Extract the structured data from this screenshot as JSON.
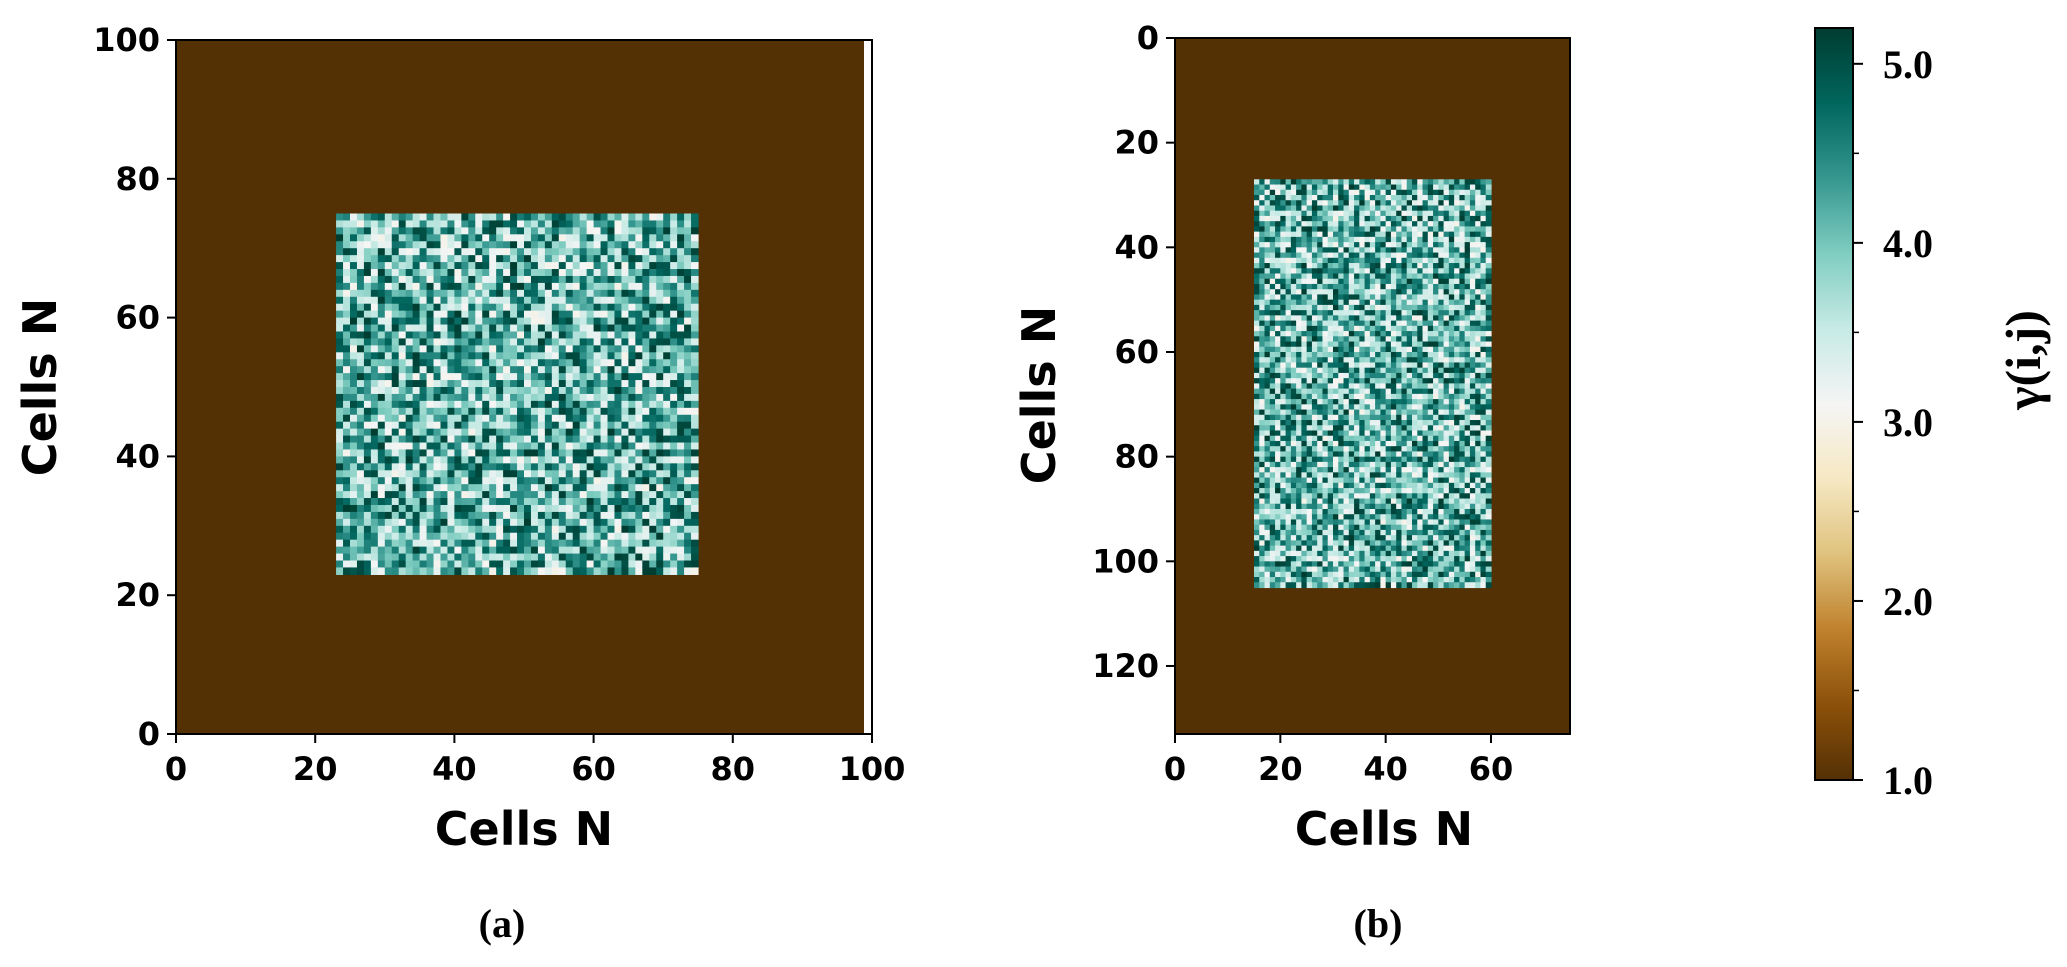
{
  "colors": {
    "background": "#523006",
    "colormap": [
      "#543005",
      "#8c510a",
      "#bf812d",
      "#dfc27d",
      "#f6e8c3",
      "#f5f5f5",
      "#c7eae5",
      "#80cdc1",
      "#35978f",
      "#01665e",
      "#003c30"
    ]
  },
  "chart_data": [
    {
      "type": "heatmap",
      "panel_label": "(a)",
      "xlabel": "Cells N",
      "ylabel": "Cells N",
      "xlim": [
        0,
        100
      ],
      "ylim": [
        0,
        100
      ],
      "y_direction": "up",
      "xticks": [
        0,
        20,
        40,
        60,
        80,
        100
      ],
      "yticks": [
        0,
        20,
        40,
        60,
        80,
        100
      ],
      "background_value": 1.0,
      "random_region": {
        "x": [
          23,
          75
        ],
        "y": [
          23,
          75
        ],
        "value_range": [
          3.0,
          5.0
        ]
      }
    },
    {
      "type": "heatmap",
      "panel_label": "(b)",
      "xlabel": "Cells N",
      "ylabel": "Cells N",
      "xlim": [
        0,
        75
      ],
      "ylim": [
        0,
        133
      ],
      "y_direction": "down",
      "xticks": [
        0,
        20,
        40,
        60
      ],
      "yticks": [
        0,
        20,
        40,
        60,
        80,
        100,
        120
      ],
      "background_value": 1.0,
      "random_region": {
        "x": [
          15,
          60
        ],
        "y": [
          27,
          105
        ],
        "value_range": [
          3.0,
          5.0
        ]
      }
    }
  ],
  "colorbar": {
    "label": "γ(i,j)",
    "range": [
      1.0,
      5.2
    ],
    "ticks": [
      1.0,
      2.0,
      3.0,
      4.0,
      5.0
    ],
    "tick_labels": [
      "1.0",
      "2.0",
      "3.0",
      "4.0",
      "5.0"
    ],
    "minor_ticks": [
      1.5,
      2.5,
      3.5,
      4.5
    ]
  }
}
